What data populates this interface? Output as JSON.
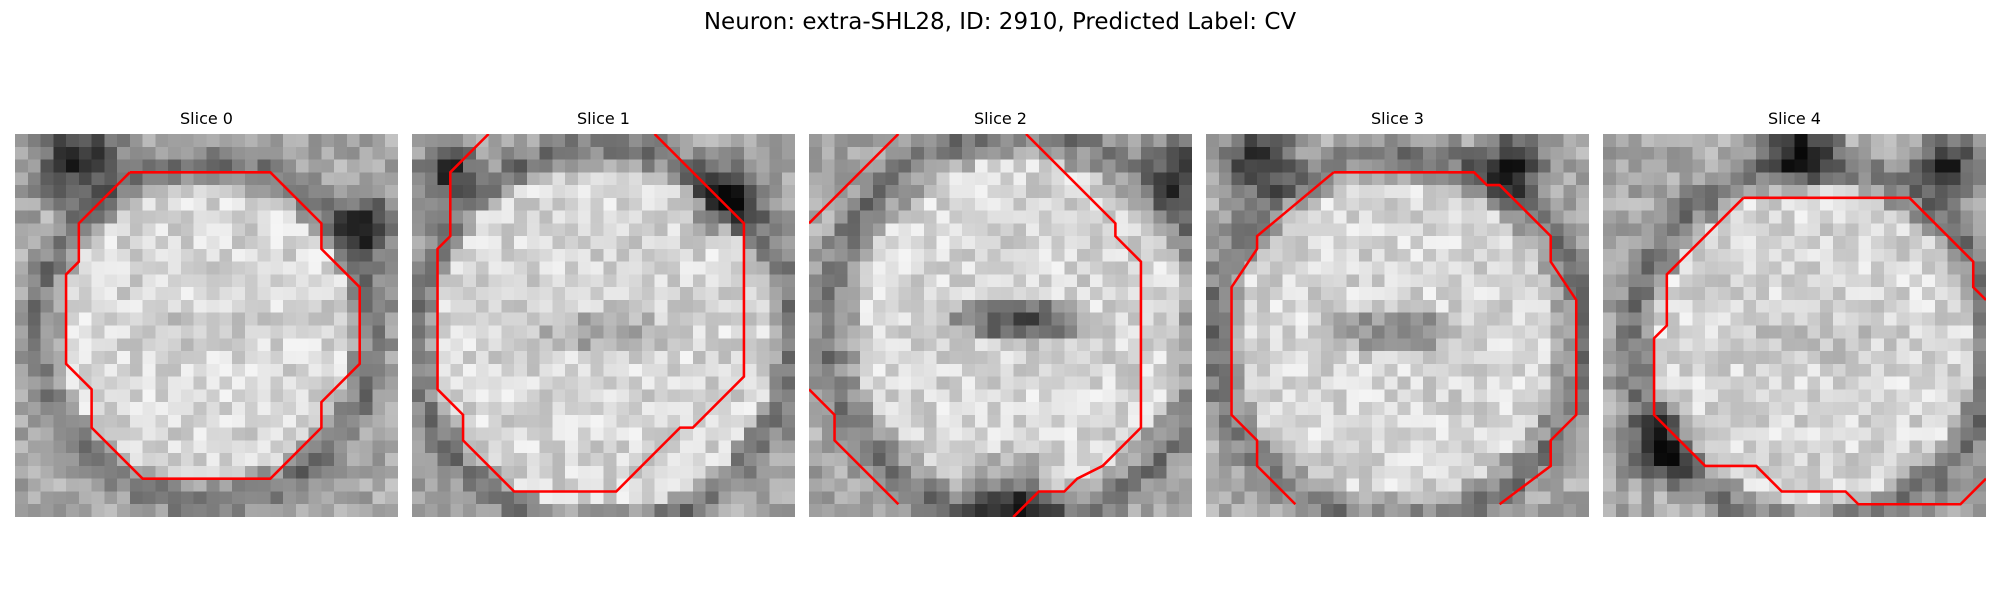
{
  "title": "Neuron: extra-SHL28, ID: 2910, Predicted Label: CV",
  "contour_color": "#ff0000",
  "slices": [
    {
      "label": "Slice 0"
    },
    {
      "label": "Slice 1"
    },
    {
      "label": "Slice 2"
    },
    {
      "label": "Slice 3"
    },
    {
      "label": "Slice 4"
    }
  ]
}
